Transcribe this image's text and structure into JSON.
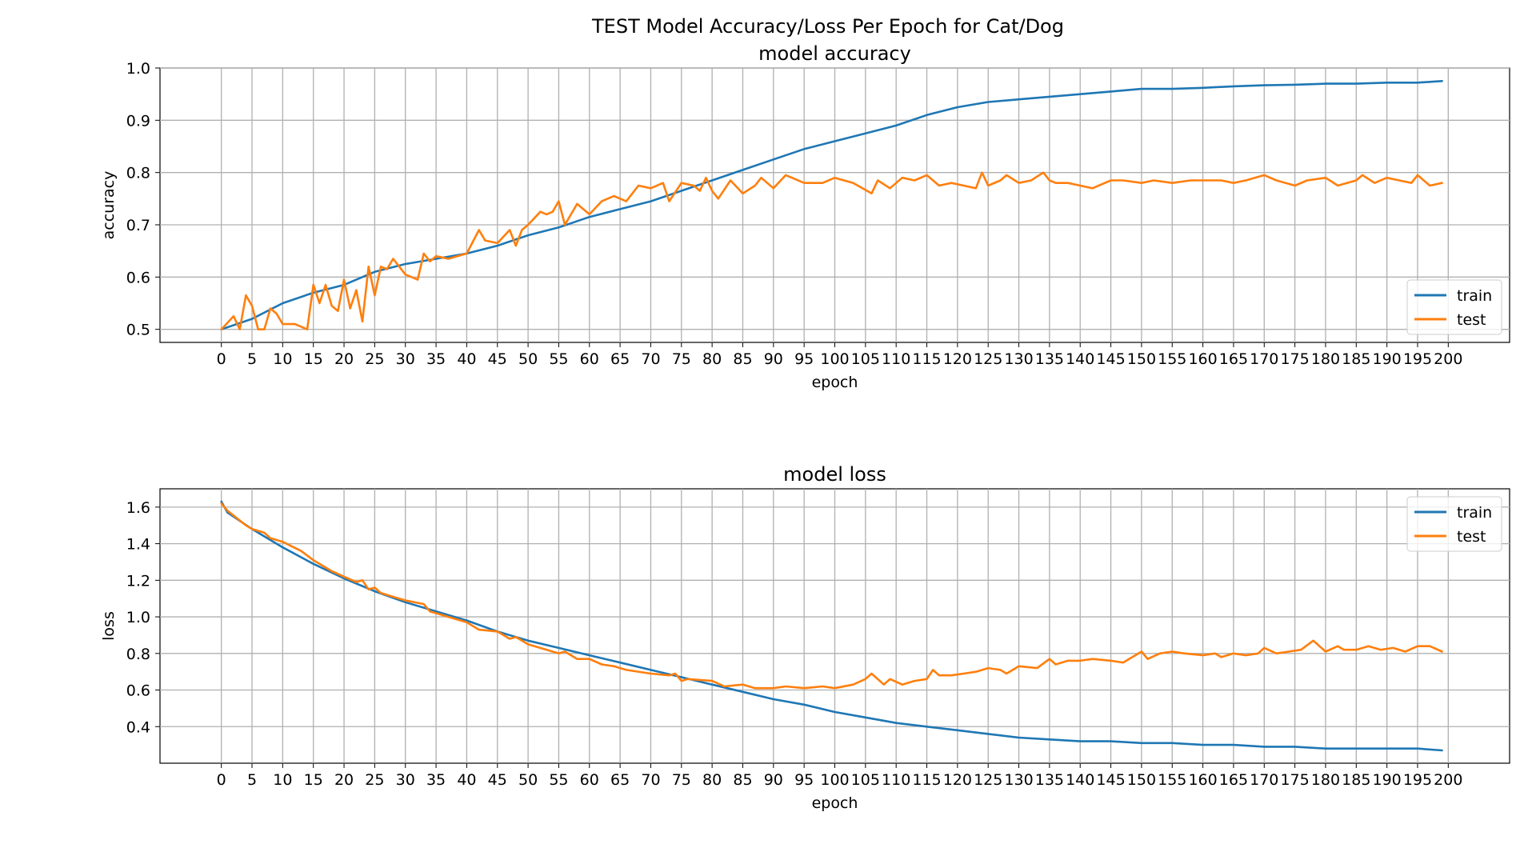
{
  "suptitle": "TEST Model Accuracy/Loss Per Epoch for Cat/Dog",
  "colors": {
    "train": "#1f77b4",
    "test": "#ff7f0e",
    "grid": "#b0b0b0",
    "axes": "#000000"
  },
  "chart_data": [
    {
      "type": "line",
      "title": "model accuracy",
      "xlabel": "epoch",
      "ylabel": "accuracy",
      "xlim": [
        -10,
        210
      ],
      "ylim": [
        0.475,
        1.0
      ],
      "xticks": [
        0,
        5,
        10,
        15,
        20,
        25,
        30,
        35,
        40,
        45,
        50,
        55,
        60,
        65,
        70,
        75,
        80,
        85,
        90,
        95,
        100,
        105,
        110,
        115,
        120,
        125,
        130,
        135,
        140,
        145,
        150,
        155,
        160,
        165,
        170,
        175,
        180,
        185,
        190,
        195,
        200
      ],
      "yticks": [
        0.5,
        0.6,
        0.7,
        0.8,
        0.9,
        1.0
      ],
      "ytick_labels": [
        "0.5",
        "0.6",
        "0.7",
        "0.8",
        "0.9",
        "1.0"
      ],
      "grid": true,
      "legend": "lower-right",
      "series": [
        {
          "name": "train",
          "x": [
            0,
            5,
            10,
            15,
            20,
            25,
            30,
            35,
            40,
            45,
            50,
            55,
            60,
            65,
            70,
            75,
            80,
            85,
            90,
            95,
            100,
            105,
            110,
            115,
            120,
            125,
            130,
            135,
            140,
            145,
            150,
            155,
            160,
            165,
            170,
            175,
            180,
            185,
            190,
            195,
            199
          ],
          "y": [
            0.5,
            0.52,
            0.55,
            0.57,
            0.585,
            0.61,
            0.625,
            0.635,
            0.645,
            0.66,
            0.68,
            0.695,
            0.715,
            0.73,
            0.745,
            0.765,
            0.785,
            0.805,
            0.825,
            0.845,
            0.86,
            0.875,
            0.89,
            0.91,
            0.925,
            0.935,
            0.94,
            0.945,
            0.95,
            0.955,
            0.96,
            0.96,
            0.962,
            0.965,
            0.967,
            0.968,
            0.97,
            0.97,
            0.972,
            0.972,
            0.975
          ]
        },
        {
          "name": "test",
          "x": [
            0,
            2,
            3,
            4,
            5,
            6,
            7,
            8,
            9,
            10,
            12,
            14,
            15,
            16,
            17,
            18,
            19,
            20,
            21,
            22,
            23,
            24,
            25,
            26,
            27,
            28,
            29,
            30,
            32,
            33,
            34,
            35,
            37,
            40,
            42,
            43,
            45,
            47,
            48,
            49,
            50,
            52,
            53,
            54,
            55,
            56,
            58,
            60,
            62,
            64,
            66,
            68,
            70,
            72,
            73,
            75,
            77,
            78,
            79,
            80,
            81,
            83,
            85,
            87,
            88,
            90,
            92,
            95,
            98,
            100,
            103,
            106,
            107,
            109,
            111,
            113,
            115,
            117,
            119,
            121,
            123,
            124,
            125,
            127,
            128,
            130,
            132,
            134,
            135,
            136,
            138,
            140,
            142,
            145,
            147,
            150,
            152,
            155,
            158,
            160,
            163,
            165,
            167,
            170,
            172,
            175,
            177,
            180,
            182,
            185,
            186,
            188,
            190,
            192,
            194,
            195,
            197,
            199
          ],
          "y": [
            0.5,
            0.525,
            0.5,
            0.565,
            0.545,
            0.5,
            0.5,
            0.54,
            0.53,
            0.51,
            0.51,
            0.5,
            0.585,
            0.55,
            0.585,
            0.545,
            0.535,
            0.595,
            0.54,
            0.575,
            0.515,
            0.62,
            0.565,
            0.62,
            0.615,
            0.635,
            0.62,
            0.605,
            0.595,
            0.645,
            0.63,
            0.64,
            0.635,
            0.645,
            0.69,
            0.67,
            0.665,
            0.69,
            0.66,
            0.69,
            0.7,
            0.725,
            0.72,
            0.725,
            0.745,
            0.7,
            0.74,
            0.72,
            0.745,
            0.755,
            0.745,
            0.775,
            0.77,
            0.78,
            0.745,
            0.78,
            0.775,
            0.765,
            0.79,
            0.765,
            0.75,
            0.785,
            0.76,
            0.775,
            0.79,
            0.77,
            0.795,
            0.78,
            0.78,
            0.79,
            0.78,
            0.76,
            0.785,
            0.77,
            0.79,
            0.785,
            0.795,
            0.775,
            0.78,
            0.775,
            0.77,
            0.8,
            0.775,
            0.785,
            0.795,
            0.78,
            0.785,
            0.8,
            0.785,
            0.78,
            0.78,
            0.775,
            0.77,
            0.785,
            0.785,
            0.78,
            0.785,
            0.78,
            0.785,
            0.785,
            0.785,
            0.78,
            0.785,
            0.795,
            0.785,
            0.775,
            0.785,
            0.79,
            0.775,
            0.785,
            0.795,
            0.78,
            0.79,
            0.785,
            0.78,
            0.795,
            0.775,
            0.78
          ]
        }
      ]
    },
    {
      "type": "line",
      "title": "model loss",
      "xlabel": "epoch",
      "ylabel": "loss",
      "xlim": [
        -10,
        210
      ],
      "ylim": [
        0.2,
        1.7
      ],
      "xticks": [
        0,
        5,
        10,
        15,
        20,
        25,
        30,
        35,
        40,
        45,
        50,
        55,
        60,
        65,
        70,
        75,
        80,
        85,
        90,
        95,
        100,
        105,
        110,
        115,
        120,
        125,
        130,
        135,
        140,
        145,
        150,
        155,
        160,
        165,
        170,
        175,
        180,
        185,
        190,
        195,
        200
      ],
      "yticks": [
        0.4,
        0.6,
        0.8,
        1.0,
        1.2,
        1.4,
        1.6
      ],
      "ytick_labels": [
        "0.4",
        "0.6",
        "0.8",
        "1.0",
        "1.2",
        "1.4",
        "1.6"
      ],
      "grid": true,
      "legend": "upper-right",
      "series": [
        {
          "name": "train",
          "x": [
            0,
            1,
            5,
            10,
            15,
            20,
            25,
            30,
            35,
            40,
            45,
            50,
            55,
            60,
            65,
            70,
            75,
            80,
            85,
            90,
            95,
            100,
            105,
            110,
            115,
            120,
            125,
            130,
            135,
            140,
            145,
            150,
            155,
            160,
            165,
            170,
            175,
            180,
            185,
            190,
            195,
            199
          ],
          "y": [
            1.63,
            1.57,
            1.48,
            1.38,
            1.29,
            1.21,
            1.14,
            1.08,
            1.03,
            0.98,
            0.92,
            0.87,
            0.83,
            0.79,
            0.75,
            0.71,
            0.67,
            0.63,
            0.59,
            0.55,
            0.52,
            0.48,
            0.45,
            0.42,
            0.4,
            0.38,
            0.36,
            0.34,
            0.33,
            0.32,
            0.32,
            0.31,
            0.31,
            0.3,
            0.3,
            0.29,
            0.29,
            0.28,
            0.28,
            0.28,
            0.28,
            0.27
          ]
        },
        {
          "name": "test",
          "x": [
            0,
            1,
            4,
            5,
            7,
            8,
            10,
            13,
            15,
            18,
            20,
            22,
            23,
            24,
            25,
            26,
            27,
            30,
            33,
            34,
            35,
            38,
            40,
            42,
            45,
            47,
            48,
            50,
            52,
            55,
            56,
            58,
            60,
            62,
            64,
            66,
            70,
            73,
            74,
            75,
            76,
            80,
            82,
            85,
            87,
            90,
            92,
            95,
            98,
            100,
            103,
            105,
            106,
            108,
            109,
            111,
            113,
            115,
            116,
            117,
            119,
            121,
            123,
            125,
            127,
            128,
            130,
            133,
            135,
            136,
            138,
            140,
            142,
            145,
            147,
            149,
            150,
            151,
            153,
            155,
            157,
            160,
            162,
            163,
            165,
            167,
            169,
            170,
            172,
            174,
            176,
            178,
            180,
            182,
            183,
            185,
            187,
            189,
            191,
            193,
            195,
            197,
            199
          ],
          "y": [
            1.62,
            1.58,
            1.5,
            1.48,
            1.46,
            1.43,
            1.41,
            1.36,
            1.31,
            1.25,
            1.22,
            1.19,
            1.2,
            1.15,
            1.16,
            1.13,
            1.12,
            1.09,
            1.07,
            1.03,
            1.02,
            0.99,
            0.97,
            0.93,
            0.92,
            0.88,
            0.89,
            0.85,
            0.83,
            0.8,
            0.81,
            0.77,
            0.77,
            0.74,
            0.73,
            0.71,
            0.69,
            0.68,
            0.69,
            0.65,
            0.66,
            0.65,
            0.62,
            0.63,
            0.61,
            0.61,
            0.62,
            0.61,
            0.62,
            0.61,
            0.63,
            0.66,
            0.69,
            0.63,
            0.66,
            0.63,
            0.65,
            0.66,
            0.71,
            0.68,
            0.68,
            0.69,
            0.7,
            0.72,
            0.71,
            0.69,
            0.73,
            0.72,
            0.77,
            0.74,
            0.76,
            0.76,
            0.77,
            0.76,
            0.75,
            0.79,
            0.81,
            0.77,
            0.8,
            0.81,
            0.8,
            0.79,
            0.8,
            0.78,
            0.8,
            0.79,
            0.8,
            0.83,
            0.8,
            0.81,
            0.82,
            0.87,
            0.81,
            0.84,
            0.82,
            0.82,
            0.84,
            0.82,
            0.83,
            0.81,
            0.84,
            0.84,
            0.81
          ]
        }
      ]
    }
  ]
}
